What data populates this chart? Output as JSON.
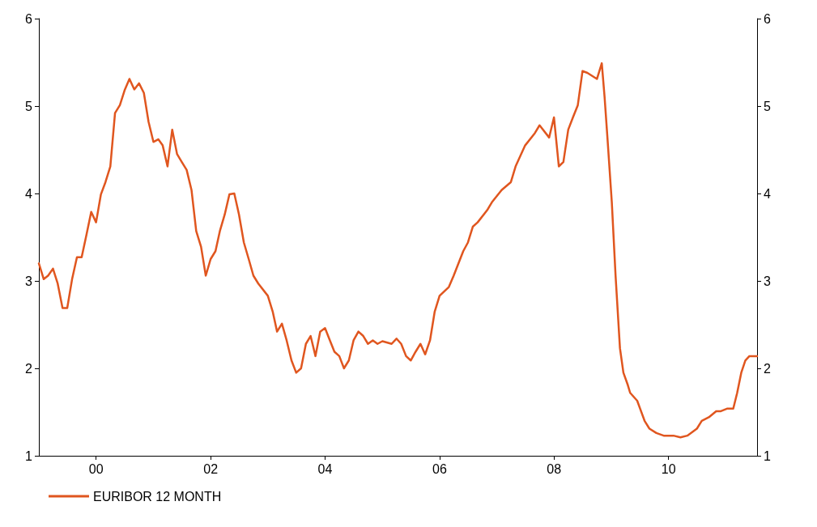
{
  "chart_data": {
    "type": "line",
    "xlim": [
      "1999-01",
      "2011-07-20"
    ],
    "xticks": [
      {
        "value": "2000",
        "label": "00"
      },
      {
        "value": "2002",
        "label": "02"
      },
      {
        "value": "2004",
        "label": "04"
      },
      {
        "value": "2006",
        "label": "06"
      },
      {
        "value": "2008",
        "label": "08"
      },
      {
        "value": "2010",
        "label": "10"
      }
    ],
    "ylim": [
      1,
      6
    ],
    "yticks": [
      1,
      2,
      3,
      4,
      5,
      6
    ],
    "y2lim": [
      1,
      6
    ],
    "y2ticks": [
      1,
      2,
      3,
      4,
      5,
      6
    ],
    "grid": false,
    "legend": "bottom left",
    "marker": "none",
    "line_style": "solid",
    "x": [
      "1999-01",
      "1999-02",
      "1999-03",
      "1999-04",
      "1999-05",
      "1999-06",
      "1999-07",
      "1999-08",
      "1999-09",
      "1999-10",
      "1999-11",
      "1999-12",
      "2000-01",
      "2000-02",
      "2000-03",
      "2000-04",
      "2000-05",
      "2000-06",
      "2000-07",
      "2000-08",
      "2000-09",
      "2000-10",
      "2000-11",
      "2000-12",
      "2001-01",
      "2001-02",
      "2001-03",
      "2001-04",
      "2001-05",
      "2001-06",
      "2001-07",
      "2001-08",
      "2001-09",
      "2001-10",
      "2001-11",
      "2001-12",
      "2002-01",
      "2002-02",
      "2002-03",
      "2002-04",
      "2002-05",
      "2002-06",
      "2002-07",
      "2002-08",
      "2002-09",
      "2002-10",
      "2002-11",
      "2003-01",
      "2003-02",
      "2003-03",
      "2003-04",
      "2003-05",
      "2003-06",
      "2003-07",
      "2003-08",
      "2003-09",
      "2003-10",
      "2003-11",
      "2003-12",
      "2004-01",
      "2004-02",
      "2004-03",
      "2004-04",
      "2004-05",
      "2004-06",
      "2004-07",
      "2004-08",
      "2004-09",
      "2004-10",
      "2004-11",
      "2004-12",
      "2005-01",
      "2005-03",
      "2005-04",
      "2005-05",
      "2005-06",
      "2005-07",
      "2005-08",
      "2005-09",
      "2005-10",
      "2005-11",
      "2005-12",
      "2006-01",
      "2006-03",
      "2006-04",
      "2006-06",
      "2006-07",
      "2006-08",
      "2006-09",
      "2006-11",
      "2006-12",
      "2007-02",
      "2007-04",
      "2007-05",
      "2007-07",
      "2007-09",
      "2007-10",
      "2007-12",
      "2008-01",
      "2008-02",
      "2008-03",
      "2008-04",
      "2008-05",
      "2008-06",
      "2008-07",
      "2008-08",
      "2008-10",
      "2008-11",
      "2008-11-19",
      "2008-12-07",
      "2009-01-04",
      "2009-01-28",
      "2009-02-25",
      "2009-03-19",
      "2009-04-16",
      "2009-05",
      "2009-06-15",
      "2009-08",
      "2009-09",
      "2009-10-15",
      "2009-12",
      "2010-02",
      "2010-03-18",
      "2010-05",
      "2010-07",
      "2010-08",
      "2010-09-15",
      "2010-11",
      "2010-12",
      "2011-01-12",
      "2011-02-18",
      "2011-03-15",
      "2011-04-10",
      "2011-05-06",
      "2011-06",
      "2011-07-20"
    ],
    "series": [
      {
        "name": "EURIBOR 12 MONTH",
        "color": "#e0561f",
        "values": [
          3.2,
          3.02,
          3.06,
          3.14,
          2.97,
          2.69,
          2.69,
          3.02,
          3.27,
          3.27,
          3.53,
          3.79,
          3.67,
          3.99,
          4.13,
          4.31,
          4.92,
          5.01,
          5.18,
          5.31,
          5.19,
          5.26,
          5.15,
          4.82,
          4.59,
          4.62,
          4.55,
          4.31,
          4.73,
          4.45,
          4.36,
          4.27,
          4.04,
          3.57,
          3.39,
          3.06,
          3.25,
          3.34,
          3.57,
          3.76,
          3.99,
          4.0,
          3.76,
          3.44,
          3.25,
          3.06,
          2.97,
          2.83,
          2.65,
          2.42,
          2.51,
          2.32,
          2.09,
          1.95,
          2.0,
          2.28,
          2.37,
          2.14,
          2.42,
          2.46,
          2.32,
          2.19,
          2.14,
          2.0,
          2.09,
          2.32,
          2.42,
          2.37,
          2.28,
          2.32,
          2.28,
          2.31,
          2.28,
          2.34,
          2.28,
          2.14,
          2.09,
          2.19,
          2.28,
          2.16,
          2.32,
          2.65,
          2.83,
          2.93,
          3.06,
          3.34,
          3.44,
          3.62,
          3.67,
          3.81,
          3.9,
          4.04,
          4.13,
          4.31,
          4.55,
          4.69,
          4.78,
          4.64,
          4.87,
          4.31,
          4.36,
          4.73,
          4.87,
          5.01,
          5.4,
          5.38,
          5.31,
          5.49,
          5.1,
          4.64,
          3.9,
          3.06,
          2.23,
          1.95,
          1.81,
          1.72,
          1.63,
          1.4,
          1.31,
          1.26,
          1.23,
          1.23,
          1.21,
          1.23,
          1.31,
          1.4,
          1.44,
          1.51,
          1.51,
          1.54,
          1.54,
          1.72,
          1.95,
          2.09,
          2.14,
          2.14
        ]
      }
    ]
  }
}
